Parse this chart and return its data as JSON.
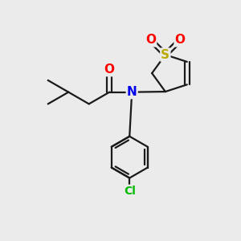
{
  "background_color": "#ebebeb",
  "bond_color": "#1a1a1a",
  "bond_width": 1.6,
  "atom_colors": {
    "O": "#ff0000",
    "N": "#0000ee",
    "S": "#bbaa00",
    "Cl": "#00bb00",
    "C": "#1a1a1a"
  },
  "font_size_atom": 11,
  "font_size_cl": 10,
  "xlim": [
    0,
    10
  ],
  "ylim": [
    0,
    10
  ]
}
